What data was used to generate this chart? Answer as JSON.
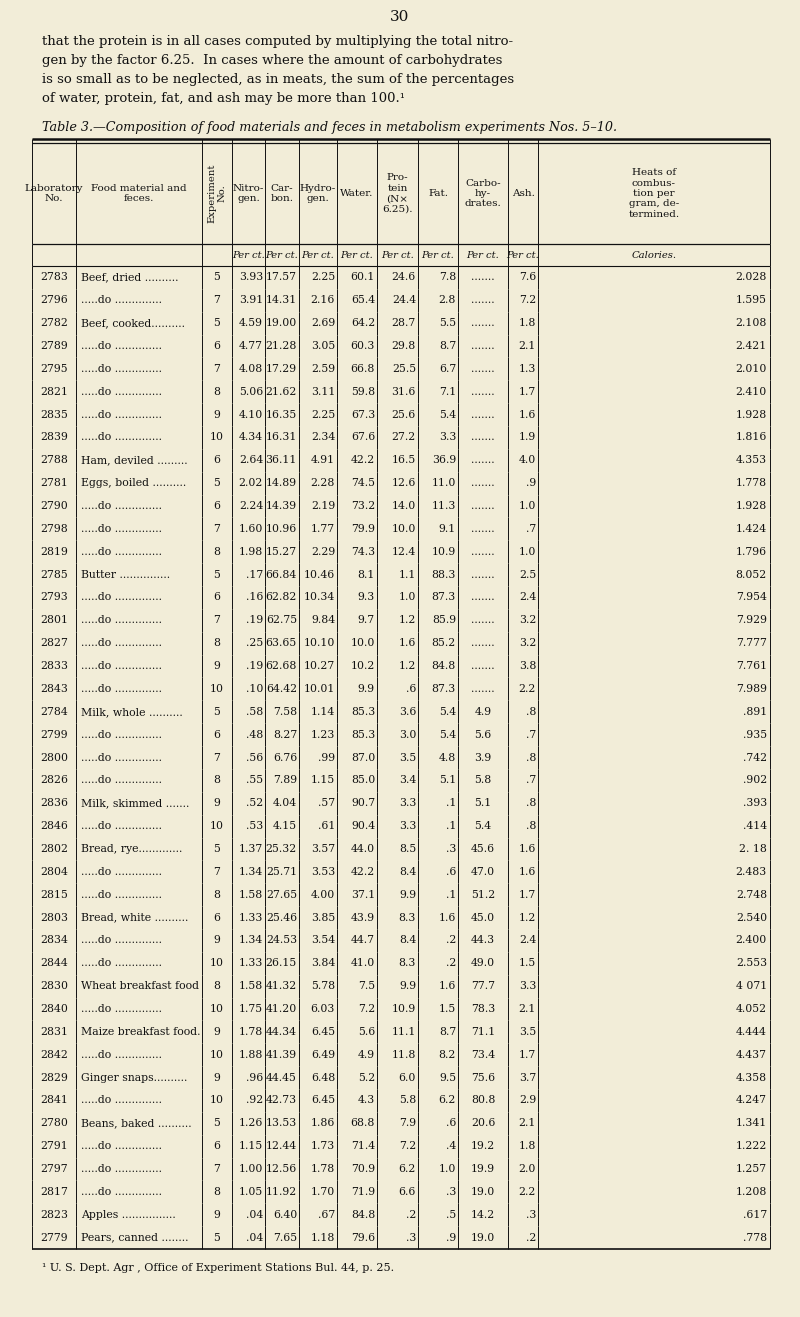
{
  "page_number": "30",
  "intro_lines": [
    "that the protein is in all cases computed by multiplying the total nitro-",
    "gen by the factor 6.25.  In cases where the amount of carbohydrates",
    "is so small as to be neglected, as in meats, the sum of the percentages",
    "of water, protein, fat, and ash may be more than 100.¹"
  ],
  "table_title": "Table 3.—Composition of food materials and feces in metabolism experiments Nos. 5–10.",
  "col_headers": [
    "Laboratory\nNo.",
    "Food material and\nfeces.",
    "Experiment\nNo.",
    "Nitro-\ngen.",
    "Car-\nbon.",
    "Hydro-\ngen.",
    "Water.",
    "Pro-\ntein\n(N×\n6.25).",
    "Fat.",
    "Carbo-\nhy-\ndrates.",
    "Ash.",
    "Heats of\ncombus-\ntion per\ngram, de-\ntermined."
  ],
  "col_units": [
    "",
    "",
    "",
    "Per ct.",
    "Per ct.",
    "Per ct.",
    "Per ct.",
    "Per ct.",
    "Per ct.",
    "Per ct.",
    "Per ct.",
    "Calories."
  ],
  "rows": [
    [
      "2783",
      "Beef, dried ..........",
      "5",
      "3.93",
      "17.57",
      "2.25",
      "60.1",
      "24.6",
      "7.8",
      ".......",
      "7.6",
      "2.028"
    ],
    [
      "2796",
      ".....do ..............",
      "7",
      "3.91",
      "14.31",
      "2.16",
      "65.4",
      "24.4",
      "2.8",
      ".......",
      "7.2",
      "1.595"
    ],
    [
      "2782",
      "Beef, cooked..........",
      "5",
      "4.59",
      "19.00",
      "2.69",
      "64.2",
      "28.7",
      "5.5",
      ".......",
      "1.8",
      "2.108"
    ],
    [
      "2789",
      ".....do ..............",
      "6",
      "4.77",
      "21.28",
      "3.05",
      "60.3",
      "29.8",
      "8.7",
      ".......",
      "2.1",
      "2.421"
    ],
    [
      "2795",
      ".....do ..............",
      "7",
      "4.08",
      "17.29",
      "2.59",
      "66.8",
      "25.5",
      "6.7",
      ".......",
      "1.3",
      "2.010"
    ],
    [
      "2821",
      ".....do ..............",
      "8",
      "5.06",
      "21.62",
      "3.11",
      "59.8",
      "31.6",
      "7.1",
      ".......",
      "1.7",
      "2.410"
    ],
    [
      "2835",
      ".....do ..............",
      "9",
      "4.10",
      "16.35",
      "2.25",
      "67.3",
      "25.6",
      "5.4",
      ".......",
      "1.6",
      "1.928"
    ],
    [
      "2839",
      ".....do ..............",
      "10",
      "4.34",
      "16.31",
      "2.34",
      "67.6",
      "27.2",
      "3.3",
      ".......",
      "1.9",
      "1.816"
    ],
    [
      "2788",
      "Ham, deviled .........",
      "6",
      "2.64",
      "36.11",
      "4.91",
      "42.2",
      "16.5",
      "36.9",
      ".......",
      "4.0",
      "4.353"
    ],
    [
      "2781",
      "Eggs, boiled ..........",
      "5",
      "2.02",
      "14.89",
      "2.28",
      "74.5",
      "12.6",
      "11.0",
      ".......",
      ".9",
      "1.778"
    ],
    [
      "2790",
      ".....do ..............",
      "6",
      "2.24",
      "14.39",
      "2.19",
      "73.2",
      "14.0",
      "11.3",
      ".......",
      "1.0",
      "1.928"
    ],
    [
      "2798",
      ".....do ..............",
      "7",
      "1.60",
      "10.96",
      "1.77",
      "79.9",
      "10.0",
      "9.1",
      ".......",
      ".7",
      "1.424"
    ],
    [
      "2819",
      ".....do ..............",
      "8",
      "1.98",
      "15.27",
      "2.29",
      "74.3",
      "12.4",
      "10.9",
      ".......",
      "1.0",
      "1.796"
    ],
    [
      "2785",
      "Butter ...............",
      "5",
      ".17",
      "66.84",
      "10.46",
      "8.1",
      "1.1",
      "88.3",
      ".......",
      "2.5",
      "8.052"
    ],
    [
      "2793",
      ".....do ..............",
      "6",
      ".16",
      "62.82",
      "10.34",
      "9.3",
      "1.0",
      "87.3",
      ".......",
      "2.4",
      "7.954"
    ],
    [
      "2801",
      ".....do ..............",
      "7",
      ".19",
      "62.75",
      "9.84",
      "9.7",
      "1.2",
      "85.9",
      ".......",
      "3.2",
      "7.929"
    ],
    [
      "2827",
      ".....do ..............",
      "8",
      ".25",
      "63.65",
      "10.10",
      "10.0",
      "1.6",
      "85.2",
      ".......",
      "3.2",
      "7.777"
    ],
    [
      "2833",
      ".....do ..............",
      "9",
      ".19",
      "62.68",
      "10.27",
      "10.2",
      "1.2",
      "84.8",
      ".......",
      "3.8",
      "7.761"
    ],
    [
      "2843",
      ".....do ..............",
      "10",
      ".10",
      "64.42",
      "10.01",
      "9.9",
      ".6",
      "87.3",
      ".......",
      "2.2",
      "7.989"
    ],
    [
      "2784",
      "Milk, whole ..........",
      "5",
      ".58",
      "7.58",
      "1.14",
      "85.3",
      "3.6",
      "5.4",
      "4.9",
      ".8",
      ".891"
    ],
    [
      "2799",
      ".....do ..............",
      "6",
      ".48",
      "8.27",
      "1.23",
      "85.3",
      "3.0",
      "5.4",
      "5.6",
      ".7",
      ".935"
    ],
    [
      "2800",
      ".....do ..............",
      "7",
      ".56",
      "6.76",
      ".99",
      "87.0",
      "3.5",
      "4.8",
      "3.9",
      ".8",
      ".742"
    ],
    [
      "2826",
      ".....do ..............",
      "8",
      ".55",
      "7.89",
      "1.15",
      "85.0",
      "3.4",
      "5.1",
      "5.8",
      ".7",
      ".902"
    ],
    [
      "2836",
      "Milk, skimmed .......",
      "9",
      ".52",
      "4.04",
      ".57",
      "90.7",
      "3.3",
      ".1",
      "5.1",
      ".8",
      ".393"
    ],
    [
      "2846",
      ".....do ..............",
      "10",
      ".53",
      "4.15",
      ".61",
      "90.4",
      "3.3",
      ".1",
      "5.4",
      ".8",
      ".414"
    ],
    [
      "2802",
      "Bread, rye.............",
      "5",
      "1.37",
      "25.32",
      "3.57",
      "44.0",
      "8.5",
      ".3",
      "45.6",
      "1.6",
      "2. 18"
    ],
    [
      "2804",
      ".....do ..............",
      "7",
      "1.34",
      "25.71",
      "3.53",
      "42.2",
      "8.4",
      ".6",
      "47.0",
      "1.6",
      "2.483"
    ],
    [
      "2815",
      ".....do ..............",
      "8",
      "1.58",
      "27.65",
      "4.00",
      "37.1",
      "9.9",
      ".1",
      "51.2",
      "1.7",
      "2.748"
    ],
    [
      "2803",
      "Bread, white ..........",
      "6",
      "1.33",
      "25.46",
      "3.85",
      "43.9",
      "8.3",
      "1.6",
      "45.0",
      "1.2",
      "2.540"
    ],
    [
      "2834",
      ".....do ..............",
      "9",
      "1.34",
      "24.53",
      "3.54",
      "44.7",
      "8.4",
      ".2",
      "44.3",
      "2.4",
      "2.400"
    ],
    [
      "2844",
      ".....do ..............",
      "10",
      "1.33",
      "26.15",
      "3.84",
      "41.0",
      "8.3",
      ".2",
      "49.0",
      "1.5",
      "2.553"
    ],
    [
      "2830",
      "Wheat breakfast food",
      "8",
      "1.58",
      "41.32",
      "5.78",
      "7.5",
      "9.9",
      "1.6",
      "77.7",
      "3.3",
      "4 071"
    ],
    [
      "2840",
      ".....do ..............",
      "10",
      "1.75",
      "41.20",
      "6.03",
      "7.2",
      "10.9",
      "1.5",
      "78.3",
      "2.1",
      "4.052"
    ],
    [
      "2831",
      "Maize breakfast food.",
      "9",
      "1.78",
      "44.34",
      "6.45",
      "5.6",
      "11.1",
      "8.7",
      "71.1",
      "3.5",
      "4.444"
    ],
    [
      "2842",
      ".....do ..............",
      "10",
      "1.88",
      "41.39",
      "6.49",
      "4.9",
      "11.8",
      "8.2",
      "73.4",
      "1.7",
      "4.437"
    ],
    [
      "2829",
      "Ginger snaps..........",
      "9",
      ".96",
      "44.45",
      "6.48",
      "5.2",
      "6.0",
      "9.5",
      "75.6",
      "3.7",
      "4.358"
    ],
    [
      "2841",
      ".....do ..............",
      "10",
      ".92",
      "42.73",
      "6.45",
      "4.3",
      "5.8",
      "6.2",
      "80.8",
      "2.9",
      "4.247"
    ],
    [
      "2780",
      "Beans, baked ..........",
      "5",
      "1.26",
      "13.53",
      "1.86",
      "68.8",
      "7.9",
      ".6",
      "20.6",
      "2.1",
      "1.341"
    ],
    [
      "2791",
      ".....do ..............",
      "6",
      "1.15",
      "12.44",
      "1.73",
      "71.4",
      "7.2",
      ".4",
      "19.2",
      "1.8",
      "1.222"
    ],
    [
      "2797",
      ".....do ..............",
      "7",
      "1.00",
      "12.56",
      "1.78",
      "70.9",
      "6.2",
      "1.0",
      "19.9",
      "2.0",
      "1.257"
    ],
    [
      "2817",
      ".....do ..............",
      "8",
      "1.05",
      "11.92",
      "1.70",
      "71.9",
      "6.6",
      ".3",
      "19.0",
      "2.2",
      "1.208"
    ],
    [
      "2823",
      "Apples ................",
      "9",
      ".04",
      "6.40",
      ".67",
      "84.8",
      ".2",
      ".5",
      "14.2",
      ".3",
      ".617"
    ],
    [
      "2779",
      "Pears, canned ........",
      "5",
      ".04",
      "7.65",
      "1.18",
      "79.6",
      ".3",
      ".9",
      "19.0",
      ".2",
      ".778"
    ]
  ],
  "footnote": "¹ U. S. Dept. Agr , Office of Experiment Stations Bul. 44, p. 25.",
  "bg_color": "#f2edd8",
  "text_color": "#111111",
  "line_color": "#111111"
}
